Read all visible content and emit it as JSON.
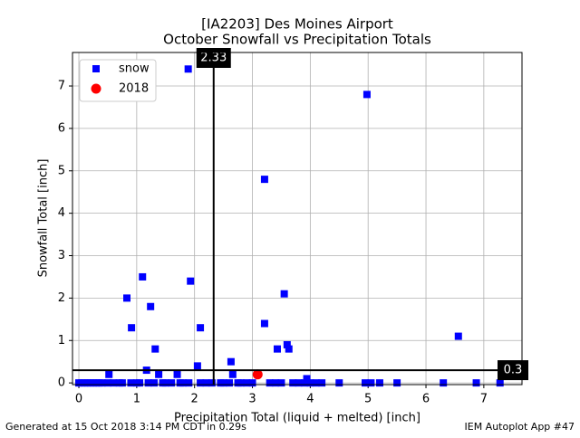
{
  "chart_data": {
    "type": "scatter",
    "title": "[IA2203] Des Moines Airport",
    "subtitle": "October Snowfall vs Precipitation Totals",
    "x_label": "Precipitation Total (liquid + melted) [inch]",
    "y_label": "Snowfall Total [inch]",
    "xlim": [
      -0.11,
      7.66
    ],
    "ylim": [
      -0.04,
      7.79
    ],
    "xticks": [
      0,
      1,
      2,
      3,
      4,
      5,
      6,
      7
    ],
    "yticks": [
      0,
      1,
      2,
      3,
      4,
      5,
      6,
      7
    ],
    "grid": true,
    "legend": "upper left",
    "series": [
      {
        "name": "snow",
        "color": "#0000ff",
        "marker": "square",
        "x": [
          1.89,
          4.98,
          3.21,
          1.1,
          0.83,
          1.93,
          1.24,
          3.55,
          0.91,
          2.1,
          3.21,
          6.56,
          1.32,
          3.43,
          3.6,
          3.63,
          2.63,
          1.17,
          2.05,
          0.52,
          1.38,
          1.7,
          2.66,
          3.94,
          0.0,
          0.05,
          0.1,
          0.15,
          0.2,
          0.25,
          0.3,
          0.35,
          0.4,
          0.5,
          0.6,
          0.7,
          0.75,
          0.9,
          1.0,
          1.05,
          1.2,
          1.3,
          1.45,
          1.5,
          1.6,
          1.75,
          1.8,
          1.9,
          2.1,
          2.2,
          2.3,
          2.45,
          2.5,
          2.6,
          2.75,
          2.8,
          2.9,
          3.0,
          3.3,
          3.4,
          3.5,
          3.7,
          3.8,
          3.9,
          4.0,
          4.1,
          4.2,
          4.5,
          4.95,
          5.05,
          5.2,
          5.5,
          6.3,
          6.87,
          7.28
        ],
        "values": [
          7.4,
          6.8,
          4.8,
          2.5,
          2.0,
          2.4,
          1.8,
          2.1,
          1.3,
          1.3,
          1.4,
          1.1,
          0.8,
          0.8,
          0.9,
          0.8,
          0.5,
          0.3,
          0.4,
          0.2,
          0.2,
          0.2,
          0.2,
          0.1,
          0,
          0,
          0,
          0,
          0,
          0,
          0,
          0,
          0,
          0,
          0,
          0,
          0,
          0,
          0,
          0,
          0,
          0,
          0,
          0,
          0,
          0,
          0,
          0,
          0,
          0,
          0,
          0,
          0,
          0,
          0,
          0,
          0,
          0,
          0,
          0,
          0,
          0,
          0,
          0,
          0,
          0,
          0,
          0,
          0,
          0,
          0,
          0,
          0,
          0,
          0
        ]
      },
      {
        "name": "2018",
        "color": "#ff0000",
        "marker": "circle",
        "x": [
          3.09
        ],
        "values": [
          0.2
        ]
      }
    ],
    "reference_lines": {
      "x": 2.33,
      "y": 0.3
    },
    "footer_left": "Generated at 15 Oct 2018 3:14 PM CDT in 0.29s",
    "footer_right": "IEM Autoplot App #47"
  }
}
